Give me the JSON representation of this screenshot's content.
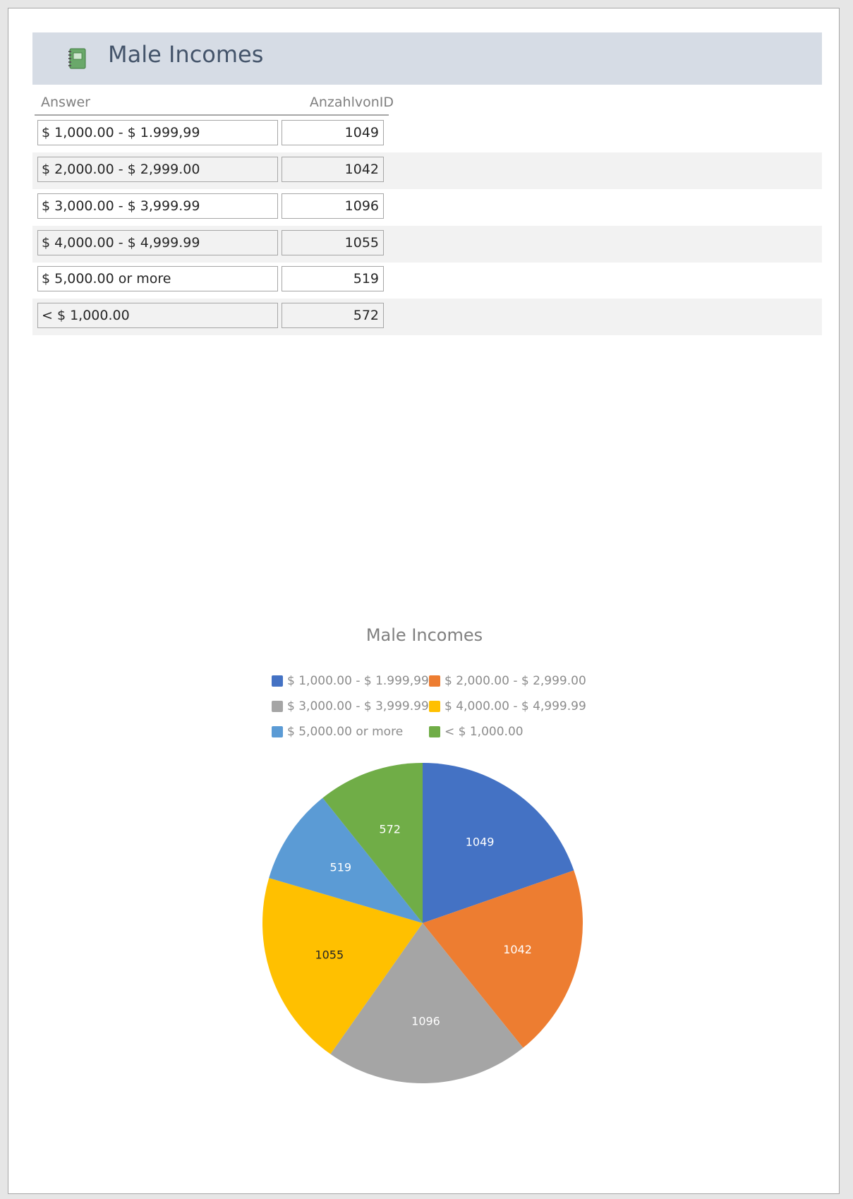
{
  "report": {
    "title": "Male Incomes",
    "icon": "report-icon"
  },
  "table": {
    "headers": {
      "answer": "Answer",
      "count": "AnzahlvonID"
    },
    "rows": [
      {
        "answer": "$ 1,000.00 - $ 1.999,99",
        "count": "1049"
      },
      {
        "answer": "$ 2,000.00 - $ 2,999.00",
        "count": "1042"
      },
      {
        "answer": "$ 3,000.00 - $ 3,999.99",
        "count": "1096"
      },
      {
        "answer": "$ 4,000.00 - $ 4,999.99",
        "count": "1055"
      },
      {
        "answer": "$ 5,000.00 or more",
        "count": "519"
      },
      {
        "answer": "< $ 1,000.00",
        "count": "572"
      }
    ]
  },
  "chart_data": {
    "type": "pie",
    "title": "Male Incomes",
    "categories": [
      "$ 1,000.00 - $ 1.999,99",
      "$ 2,000.00 - $ 2,999.00",
      "$ 3,000.00 - $ 3,999.99",
      "$ 4,000.00 - $ 4,999.99",
      "$ 5,000.00 or more",
      "< $ 1,000.00"
    ],
    "values": [
      1049,
      1042,
      1096,
      1055,
      519,
      572
    ],
    "colors": [
      "#4472c4",
      "#ed7d31",
      "#a5a5a5",
      "#ffc000",
      "#5b9bd5",
      "#70ad47"
    ],
    "label_colors": [
      "#ffffff",
      "#ffffff",
      "#ffffff",
      "#262626",
      "#ffffff",
      "#ffffff"
    ],
    "legend_position": "top",
    "start": "12 o'clock, clockwise"
  }
}
